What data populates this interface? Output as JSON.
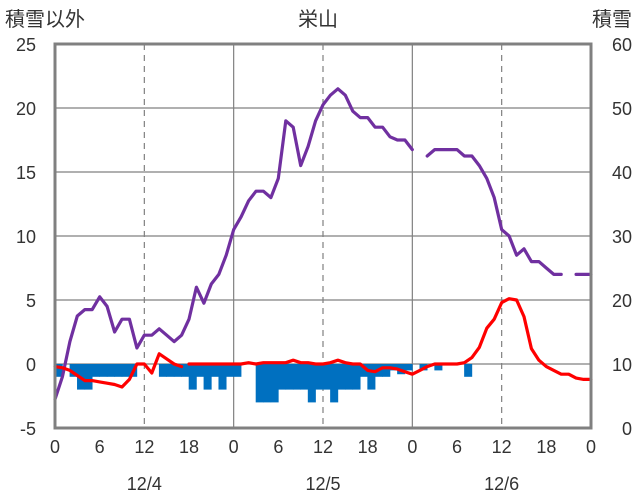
{
  "chart_data": {
    "type": "line",
    "title": "栄山",
    "left_axis_label": "積雪以外",
    "right_axis_label": "積雪",
    "ylim_left": [
      -5,
      25
    ],
    "ylim_right": [
      0,
      60
    ],
    "yticks_left": [
      "-5",
      "0",
      "5",
      "10",
      "15",
      "20",
      "25"
    ],
    "yticks_right": [
      "0",
      "10",
      "20",
      "30",
      "40",
      "50",
      "60"
    ],
    "xlim_hours": [
      0,
      72
    ],
    "xticks": [
      "0",
      "6",
      "12",
      "18",
      "0",
      "6",
      "12",
      "18",
      "0",
      "6",
      "12",
      "18",
      "0"
    ],
    "day_labels": [
      "12/4",
      "12/5",
      "12/6"
    ],
    "grid": true,
    "colors": {
      "temperature": "#ff0000",
      "snow_depth": "#7030a0",
      "precipitation": "#0070c0",
      "frame": "#808080",
      "grid": "#808080"
    },
    "series": [
      {
        "key": "snow_depth",
        "axis": "right",
        "x": [
          0,
          1,
          2,
          3,
          4,
          5,
          6,
          7,
          8,
          9,
          10,
          11,
          12,
          13,
          14,
          15,
          16,
          17,
          18,
          19,
          20,
          21,
          22,
          23,
          24,
          25,
          26,
          27,
          28,
          29,
          30,
          31,
          32,
          33,
          34,
          35,
          36,
          37,
          38,
          39,
          40,
          41,
          42,
          43,
          44,
          45,
          46,
          47,
          48,
          null,
          50,
          51,
          52,
          53,
          54,
          55,
          56,
          57,
          58,
          59,
          60,
          61,
          62,
          63,
          64,
          65,
          66,
          67,
          68,
          null,
          70,
          71,
          72
        ],
        "values": [
          4.5,
          8,
          13.5,
          17.5,
          18.5,
          18.5,
          20.5,
          19,
          15,
          17,
          17,
          12.5,
          14.5,
          14.5,
          15.5,
          14.5,
          13.5,
          14.5,
          17,
          22,
          19.5,
          22.5,
          24,
          27,
          31,
          33,
          35.5,
          37,
          37,
          36,
          39,
          48,
          47,
          41,
          44,
          48,
          50.5,
          52,
          53,
          52,
          49.5,
          48.5,
          48.5,
          47,
          47,
          45.5,
          45,
          45,
          43.5,
          null,
          42.5,
          43.5,
          43.5,
          43.5,
          43.5,
          42.5,
          42.5,
          41,
          39,
          36,
          31,
          30,
          27,
          28,
          26,
          26,
          25,
          24,
          24,
          null,
          24,
          24,
          24
        ]
      },
      {
        "key": "temperature",
        "axis": "left",
        "x": [
          0,
          1,
          2,
          3,
          4,
          5,
          6,
          7,
          8,
          9,
          10,
          11,
          12,
          13,
          14,
          15,
          16,
          17,
          null,
          18,
          19,
          20,
          21,
          22,
          23,
          24,
          25,
          26,
          27,
          28,
          29,
          30,
          31,
          32,
          33,
          34,
          35,
          36,
          37,
          38,
          39,
          40,
          41,
          42,
          43,
          44,
          45,
          46,
          47,
          48,
          49,
          50,
          51,
          52,
          53,
          54,
          55,
          56,
          57,
          58,
          59,
          60,
          61,
          62,
          63,
          64,
          65,
          66,
          67,
          68,
          69,
          70,
          71,
          72
        ],
        "values": [
          -0.2,
          -0.3,
          -0.5,
          -0.9,
          -1.3,
          -1.3,
          -1.4,
          -1.5,
          -1.6,
          -1.8,
          -1.2,
          0,
          0,
          -0.7,
          0.8,
          0.4,
          0,
          -0.2,
          null,
          0,
          0,
          0,
          0,
          0,
          0,
          0,
          0,
          0.1,
          0,
          0.1,
          0.1,
          0.1,
          0.1,
          0.3,
          0.1,
          0.1,
          0,
          0,
          0.1,
          0.3,
          0.1,
          0,
          0,
          -0.5,
          -0.6,
          -0.3,
          -0.3,
          -0.4,
          -0.6,
          -0.8,
          -0.5,
          -0.2,
          0,
          0,
          0,
          0,
          0.1,
          0.5,
          1.3,
          2.8,
          3.5,
          4.8,
          5.1,
          5,
          3.7,
          1.2,
          0.3,
          -0.2,
          -0.5,
          -0.8,
          -0.8,
          -1.1,
          -1.2,
          -1.2
        ]
      },
      {
        "key": "precipitation",
        "axis": "left",
        "type": "bar",
        "x": [
          0,
          2,
          3,
          4,
          5,
          6,
          7,
          8,
          9,
          10,
          14,
          15,
          16,
          17,
          18,
          19,
          20,
          21,
          22,
          23,
          24,
          27,
          28,
          29,
          30,
          31,
          32,
          33,
          34,
          35,
          36,
          37,
          38,
          39,
          40,
          41,
          42,
          43,
          44,
          45,
          46,
          47,
          49,
          51,
          55
        ],
        "values": [
          1,
          1,
          2,
          2,
          1,
          1,
          1,
          1,
          1,
          1,
          1,
          1,
          1,
          1,
          2,
          1,
          2,
          1,
          2,
          1,
          1,
          3,
          3,
          3,
          2,
          2,
          2,
          2,
          3,
          2,
          2,
          3,
          2,
          2,
          2,
          1,
          2,
          1,
          1,
          0.5,
          0.8,
          0.5,
          0.5,
          0.5,
          1
        ]
      }
    ]
  }
}
